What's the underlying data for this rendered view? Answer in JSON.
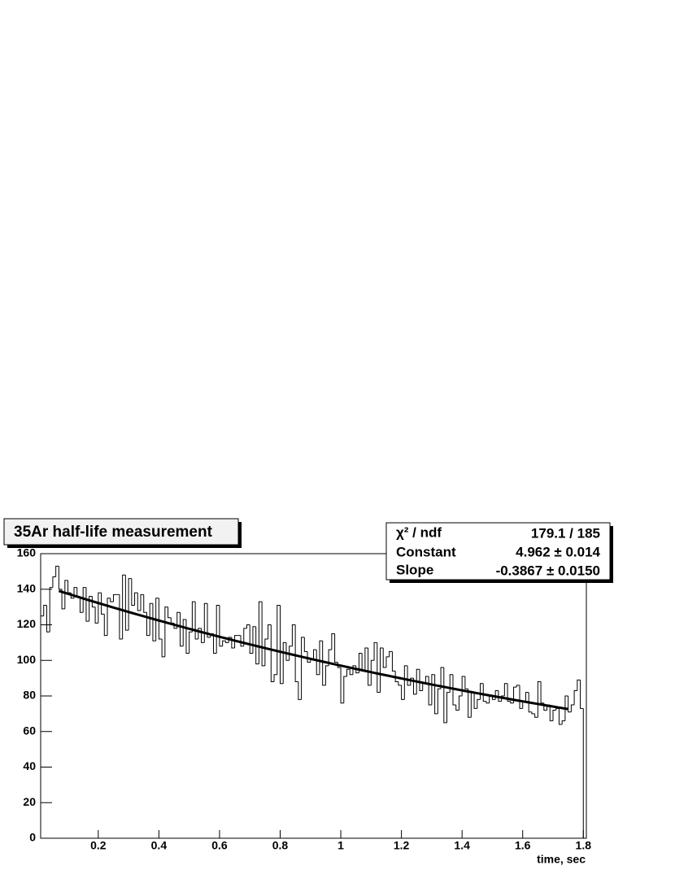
{
  "chart_data": {
    "type": "histogram",
    "title": "35Ar half-life measurement",
    "x_label": "time, sec",
    "bins": [
      0.01,
      0.02,
      0.03,
      0.04,
      0.05,
      0.06,
      0.07,
      0.08,
      0.09,
      0.1,
      0.11,
      0.12,
      0.13,
      0.14,
      0.15,
      0.16,
      0.17,
      0.18,
      0.19,
      0.2,
      0.21,
      0.22,
      0.23,
      0.24,
      0.25,
      0.26,
      0.27,
      0.28,
      0.29,
      0.3,
      0.31,
      0.32,
      0.33,
      0.34,
      0.35,
      0.36,
      0.37,
      0.38,
      0.39,
      0.4,
      0.41,
      0.42,
      0.43,
      0.44,
      0.45,
      0.46,
      0.47,
      0.48,
      0.49,
      0.5,
      0.51,
      0.52,
      0.53,
      0.54,
      0.55,
      0.56,
      0.57,
      0.58,
      0.59,
      0.6,
      0.61,
      0.62,
      0.63,
      0.64,
      0.65,
      0.66,
      0.67,
      0.68,
      0.69,
      0.7,
      0.71,
      0.72,
      0.73,
      0.74,
      0.75,
      0.76,
      0.77,
      0.78,
      0.79,
      0.8,
      0.81,
      0.82,
      0.83,
      0.84,
      0.85,
      0.86,
      0.87,
      0.88,
      0.89,
      0.9,
      0.91,
      0.92,
      0.93,
      0.94,
      0.95,
      0.96,
      0.97,
      0.98,
      0.99,
      1.0,
      1.01,
      1.02,
      1.03,
      1.04,
      1.05,
      1.06,
      1.07,
      1.08,
      1.09,
      1.1,
      1.11,
      1.12,
      1.13,
      1.14,
      1.15,
      1.16,
      1.17,
      1.18,
      1.19,
      1.2,
      1.21,
      1.22,
      1.23,
      1.24,
      1.25,
      1.26,
      1.27,
      1.28,
      1.29,
      1.3,
      1.31,
      1.32,
      1.33,
      1.34,
      1.35,
      1.36,
      1.37,
      1.38,
      1.39,
      1.4,
      1.41,
      1.42,
      1.43,
      1.44,
      1.45,
      1.46,
      1.47,
      1.48,
      1.49,
      1.5,
      1.51,
      1.52,
      1.53,
      1.54,
      1.55,
      1.56,
      1.57,
      1.58,
      1.59,
      1.6,
      1.61,
      1.62,
      1.63,
      1.64,
      1.65,
      1.66,
      1.67,
      1.68,
      1.69,
      1.7,
      1.71,
      1.72,
      1.73,
      1.74,
      1.75,
      1.76,
      1.77,
      1.78,
      1.79,
      1.8,
      1.81
    ],
    "values": [
      125,
      131,
      116,
      141,
      147,
      153,
      140,
      129,
      145,
      138,
      135,
      141,
      136,
      127,
      141,
      122,
      136,
      130,
      121,
      138,
      126,
      114,
      135,
      133,
      137,
      137,
      112,
      148,
      117,
      146,
      131,
      138,
      128,
      137,
      127,
      114,
      132,
      111,
      135,
      112,
      102,
      130,
      124,
      121,
      118,
      127,
      108,
      123,
      104,
      116,
      133,
      112,
      118,
      110,
      132,
      113,
      115,
      104,
      131,
      108,
      111,
      110,
      113,
      107,
      114,
      114,
      108,
      118,
      120,
      104,
      119,
      98,
      133,
      97,
      112,
      120,
      88,
      92,
      131,
      87,
      110,
      100,
      108,
      120,
      88,
      78,
      113,
      105,
      99,
      101,
      106,
      92,
      111,
      86,
      97,
      106,
      115,
      99,
      96,
      76,
      91,
      95,
      92,
      97,
      93,
      104,
      94,
      107,
      86,
      100,
      110,
      82,
      107,
      96,
      102,
      105,
      94,
      88,
      86,
      78,
      97,
      86,
      90,
      81,
      95,
      83,
      87,
      91,
      75,
      92,
      70,
      84,
      96,
      65,
      82,
      92,
      75,
      72,
      80,
      91,
      84,
      68,
      82,
      73,
      78,
      87,
      77,
      76,
      80,
      78,
      83,
      77,
      80,
      87,
      77,
      76,
      85,
      86,
      73,
      77,
      82,
      71,
      70,
      68,
      88,
      76,
      72,
      75,
      66,
      72,
      73,
      64,
      66,
      80,
      71,
      75,
      83,
      89,
      73,
      0
    ],
    "color": "#000000",
    "xlim": [
      0.01,
      1.81
    ],
    "ylim": [
      0,
      160
    ],
    "xticks": [
      0.2,
      0.4,
      0.6,
      0.8,
      1,
      1.2,
      1.4,
      1.6,
      1.8
    ],
    "yticks": [
      0,
      20,
      40,
      60,
      80,
      100,
      120,
      140,
      160
    ],
    "fit": {
      "type": "exponential",
      "constant": 4.962,
      "slope": -0.3867,
      "range": [
        0.07,
        1.75
      ],
      "color": "#000000"
    },
    "stats": {
      "chi2_label": "χ² / ndf",
      "chi2_value": "179.1 / 185",
      "constant_label": "Constant",
      "constant_value": "4.962 ± 0.014",
      "slope_label": "Slope",
      "slope_value": "-0.3867 ± 0.0150"
    }
  }
}
